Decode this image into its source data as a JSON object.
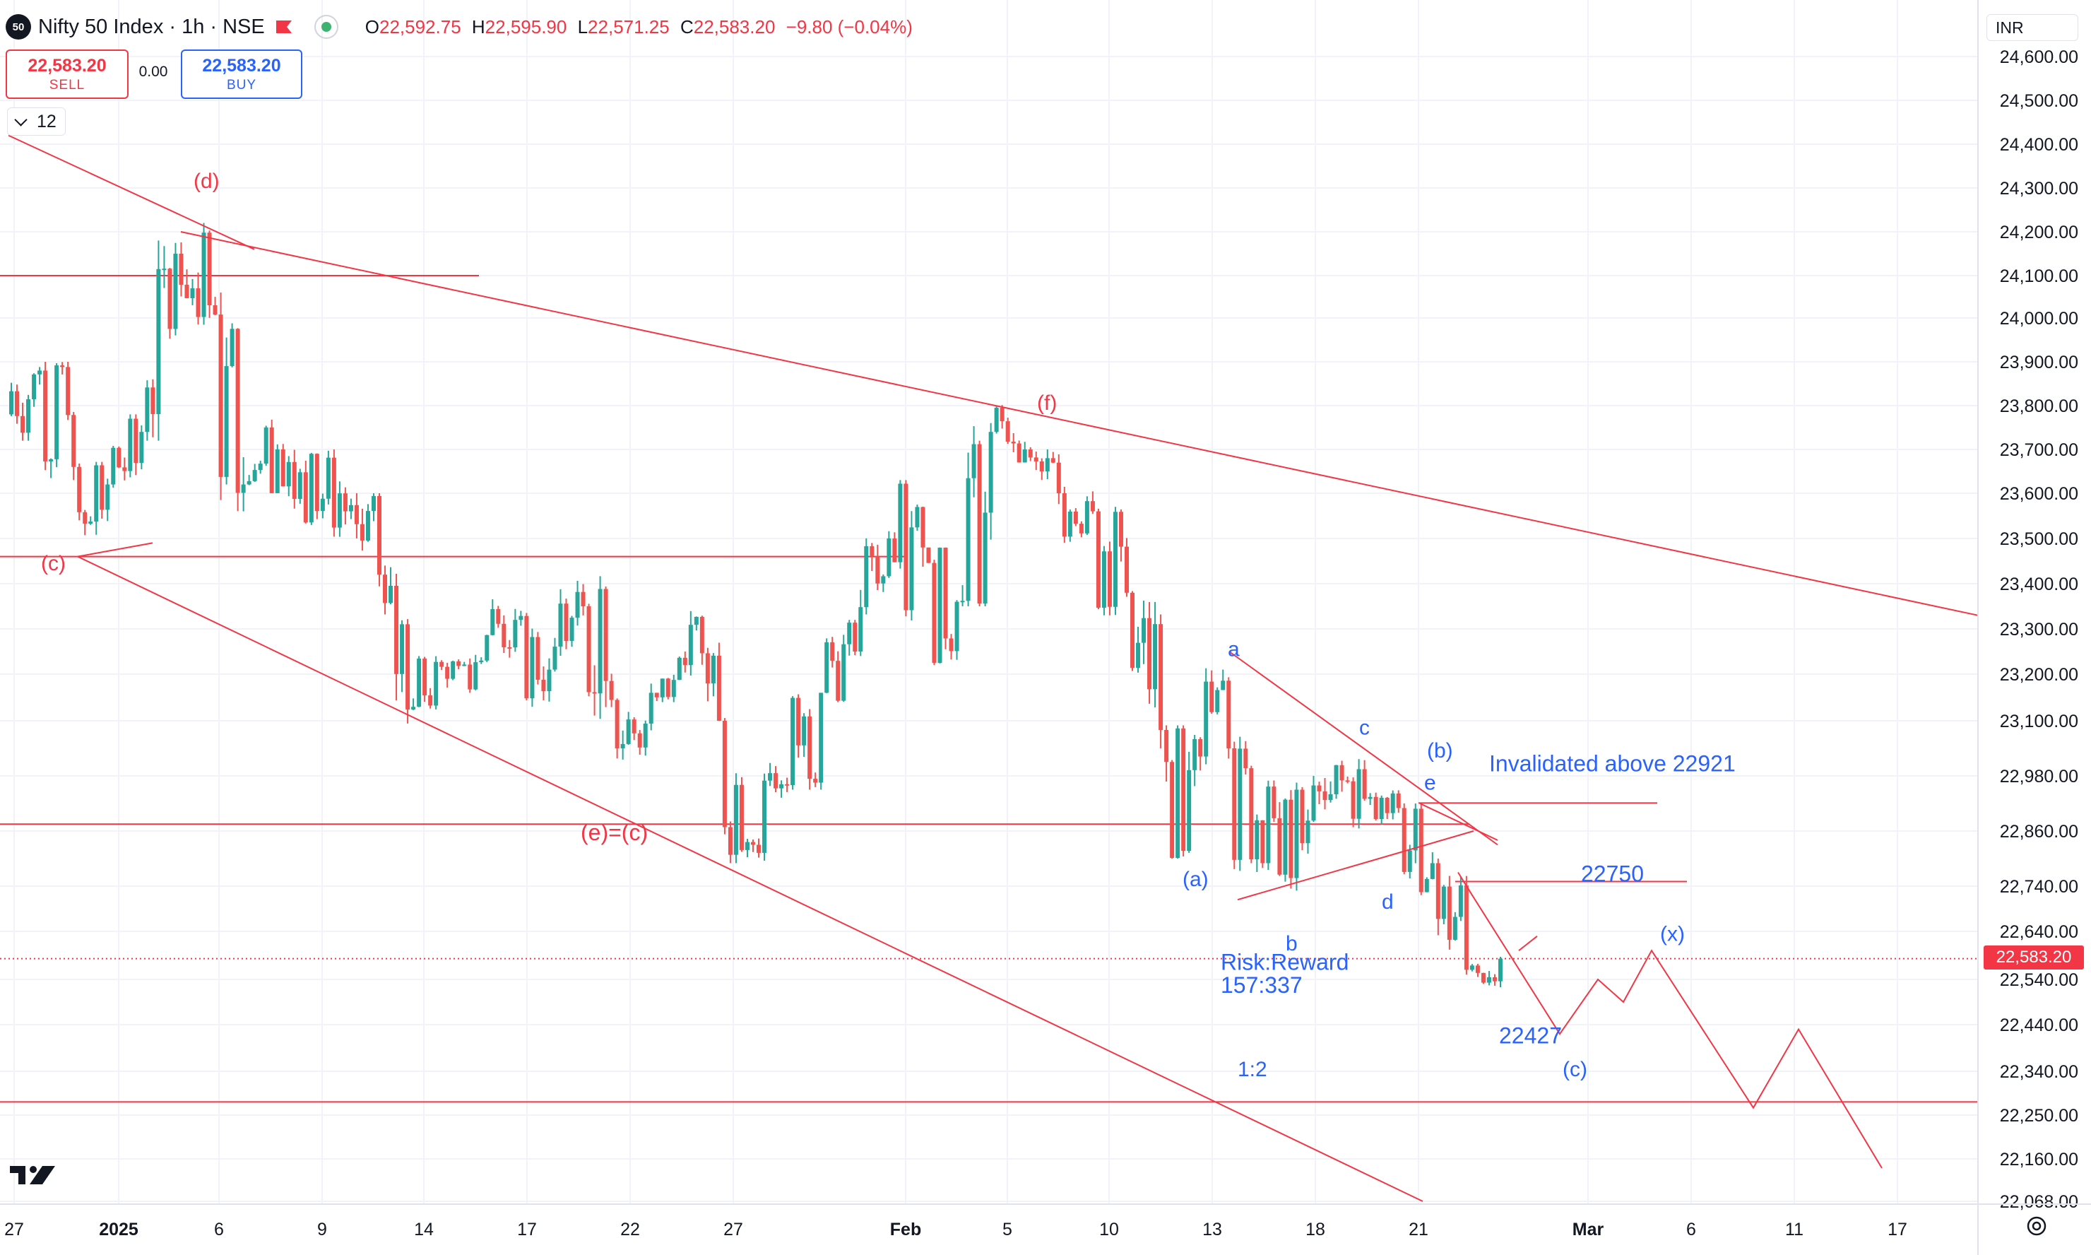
{
  "header": {
    "symbol_badge": "50",
    "title": "Nifty 50 Index · 1h · NSE",
    "ohlc": [
      {
        "key": "O",
        "value": "22,592.75"
      },
      {
        "key": "H",
        "value": "22,595.90"
      },
      {
        "key": "L",
        "value": "22,571.25"
      },
      {
        "key": "C",
        "value": "22,583.20"
      }
    ],
    "change": "−9.80 (−0.04%)"
  },
  "trade_panel": {
    "sell_price": "22,583.20",
    "sell_label": "SELL",
    "spread": "0.00",
    "buy_price": "22,583.20",
    "buy_label": "BUY"
  },
  "indicator_toggle": {
    "count": "12"
  },
  "price_scale": {
    "currency": "INR",
    "last_price_label": "22,583.20",
    "ticks": [
      "24,600.00",
      "24,500.00",
      "24,400.00",
      "24,300.00",
      "24,200.00",
      "24,100.00",
      "24,000.00",
      "23,900.00",
      "23,800.00",
      "23,700.00",
      "23,600.00",
      "23,500.00",
      "23,400.00",
      "23,300.00",
      "23,200.00",
      "23,100.00",
      "22,980.00",
      "22,860.00",
      "22,740.00",
      "22,640.00",
      "22,540.00",
      "22,440.00",
      "22,340.00",
      "22,250.00",
      "22,160.00",
      "22,068.00"
    ]
  },
  "time_scale": {
    "ticks": [
      "27",
      "2025",
      "6",
      "9",
      "14",
      "17",
      "22",
      "27",
      "Feb",
      "5",
      "10",
      "13",
      "18",
      "21",
      "Mar",
      "6",
      "11",
      "17"
    ]
  },
  "colors": {
    "up": "#26a69a",
    "down": "#ef5350",
    "drawing_red": "#f23645",
    "drawing_blue": "#2962ff"
  },
  "chart_data": {
    "type": "candlestick",
    "symbol": "Nifty 50 Index",
    "timeframe": "1h",
    "exchange": "NSE",
    "last_price": 22583.2,
    "y_range": [
      22068,
      24600
    ],
    "series": [
      {
        "date": "2024-12-27",
        "open": 23780,
        "high": 23950,
        "low": 23720,
        "close": 23880
      },
      {
        "date": "2024-12-30",
        "open": 23880,
        "high": 23900,
        "low": 23630,
        "close": 23660
      },
      {
        "date": "2024-12-31",
        "open": 23660,
        "high": 23680,
        "low": 23460,
        "close": 23620
      },
      {
        "date": "2025-01-01",
        "open": 23620,
        "high": 23780,
        "low": 23560,
        "close": 23740
      },
      {
        "date": "2025-01-02",
        "open": 23740,
        "high": 24180,
        "low": 23720,
        "close": 24150
      },
      {
        "date": "2025-01-03",
        "open": 24150,
        "high": 24230,
        "low": 23980,
        "close": 24030
      },
      {
        "date": "2025-01-06",
        "open": 24030,
        "high": 24060,
        "low": 23560,
        "close": 23620
      },
      {
        "date": "2025-01-07",
        "open": 23620,
        "high": 23790,
        "low": 23600,
        "close": 23700
      },
      {
        "date": "2025-01-08",
        "open": 23700,
        "high": 23720,
        "low": 23520,
        "close": 23690
      },
      {
        "date": "2025-01-09",
        "open": 23690,
        "high": 23700,
        "low": 23500,
        "close": 23560
      },
      {
        "date": "2025-01-10",
        "open": 23560,
        "high": 23600,
        "low": 23370,
        "close": 23420
      },
      {
        "date": "2025-01-13",
        "open": 23420,
        "high": 23440,
        "low": 23060,
        "close": 23130
      },
      {
        "date": "2025-01-14",
        "open": 23130,
        "high": 23240,
        "low": 23100,
        "close": 23190
      },
      {
        "date": "2025-01-15",
        "open": 23190,
        "high": 23280,
        "low": 23160,
        "close": 23230
      },
      {
        "date": "2025-01-16",
        "open": 23230,
        "high": 23390,
        "low": 23220,
        "close": 23320
      },
      {
        "date": "2025-01-17",
        "open": 23320,
        "high": 23340,
        "low": 23130,
        "close": 23210
      },
      {
        "date": "2025-01-20",
        "open": 23210,
        "high": 23420,
        "low": 23200,
        "close": 23350
      },
      {
        "date": "2025-01-21",
        "open": 23350,
        "high": 23420,
        "low": 23000,
        "close": 23040
      },
      {
        "date": "2025-01-22",
        "open": 23040,
        "high": 23180,
        "low": 22980,
        "close": 23160
      },
      {
        "date": "2025-01-23",
        "open": 23160,
        "high": 23250,
        "low": 23140,
        "close": 23220
      },
      {
        "date": "2025-01-24",
        "open": 23220,
        "high": 23350,
        "low": 23080,
        "close": 23100
      },
      {
        "date": "2025-01-27",
        "open": 23100,
        "high": 23110,
        "low": 22790,
        "close": 22830
      },
      {
        "date": "2025-01-28",
        "open": 22830,
        "high": 23010,
        "low": 22790,
        "close": 22960
      },
      {
        "date": "2025-01-29",
        "open": 22960,
        "high": 23180,
        "low": 22950,
        "close": 23160
      },
      {
        "date": "2025-01-30",
        "open": 23160,
        "high": 23320,
        "low": 23140,
        "close": 23250
      },
      {
        "date": "2025-01-31",
        "open": 23250,
        "high": 23520,
        "low": 23240,
        "close": 23500
      },
      {
        "date": "2025-02-01",
        "open": 23500,
        "high": 23630,
        "low": 23250,
        "close": 23480
      },
      {
        "date": "2025-02-03",
        "open": 23480,
        "high": 23480,
        "low": 23220,
        "close": 23360
      },
      {
        "date": "2025-02-04",
        "open": 23360,
        "high": 23760,
        "low": 23350,
        "close": 23740
      },
      {
        "date": "2025-02-05",
        "open": 23740,
        "high": 23810,
        "low": 23670,
        "close": 23700
      },
      {
        "date": "2025-02-06",
        "open": 23700,
        "high": 23720,
        "low": 23560,
        "close": 23600
      },
      {
        "date": "2025-02-07",
        "open": 23600,
        "high": 23690,
        "low": 23480,
        "close": 23560
      },
      {
        "date": "2025-02-10",
        "open": 23560,
        "high": 23570,
        "low": 23330,
        "close": 23380
      },
      {
        "date": "2025-02-11",
        "open": 23380,
        "high": 23400,
        "low": 23040,
        "close": 23080
      },
      {
        "date": "2025-02-12",
        "open": 23080,
        "high": 23090,
        "low": 22800,
        "close": 23060
      },
      {
        "date": "2025-02-13",
        "open": 23060,
        "high": 23230,
        "low": 22990,
        "close": 23040
      },
      {
        "date": "2025-02-14",
        "open": 23040,
        "high": 23070,
        "low": 22760,
        "close": 22790
      },
      {
        "date": "2025-02-17",
        "open": 22790,
        "high": 22970,
        "low": 22730,
        "close": 22950
      },
      {
        "date": "2025-02-18",
        "open": 22950,
        "high": 23000,
        "low": 22800,
        "close": 22940
      },
      {
        "date": "2025-02-19",
        "open": 22940,
        "high": 23050,
        "low": 22860,
        "close": 22930
      },
      {
        "date": "2025-02-20",
        "open": 22930,
        "high": 22950,
        "low": 22840,
        "close": 22910
      },
      {
        "date": "2025-02-21",
        "open": 22910,
        "high": 22920,
        "low": 22720,
        "close": 22790
      },
      {
        "date": "2025-02-24",
        "open": 22790,
        "high": 22800,
        "low": 22550,
        "close": 22560
      },
      {
        "date": "2025-02-25",
        "open": 22560,
        "high": 22610,
        "low": 22520,
        "close": 22583.2
      }
    ],
    "annotations": [
      {
        "text": "(d)",
        "color": "red"
      },
      {
        "text": "(c)",
        "color": "red"
      },
      {
        "text": "(f)",
        "color": "red"
      },
      {
        "text": "(e)=(c)",
        "color": "red"
      },
      {
        "text": "a",
        "color": "blue"
      },
      {
        "text": "b",
        "color": "blue"
      },
      {
        "text": "c",
        "color": "blue"
      },
      {
        "text": "d",
        "color": "blue"
      },
      {
        "text": "e",
        "color": "blue"
      },
      {
        "text": "(a)",
        "color": "blue"
      },
      {
        "text": "(b)",
        "color": "blue"
      },
      {
        "text": "(c)",
        "color": "blue"
      },
      {
        "text": "(x)",
        "color": "blue"
      },
      {
        "text": "Invalidated above 22921",
        "color": "blue"
      },
      {
        "text": "22750",
        "color": "blue"
      },
      {
        "text": "22427",
        "color": "blue"
      },
      {
        "text": "Risk:Reward",
        "color": "blue"
      },
      {
        "text": "157:337",
        "color": "blue"
      },
      {
        "text": "1:2",
        "color": "blue"
      }
    ],
    "horizontal_levels": [
      24100,
      23460,
      22875,
      22921,
      22750,
      22277
    ],
    "grid": true
  }
}
